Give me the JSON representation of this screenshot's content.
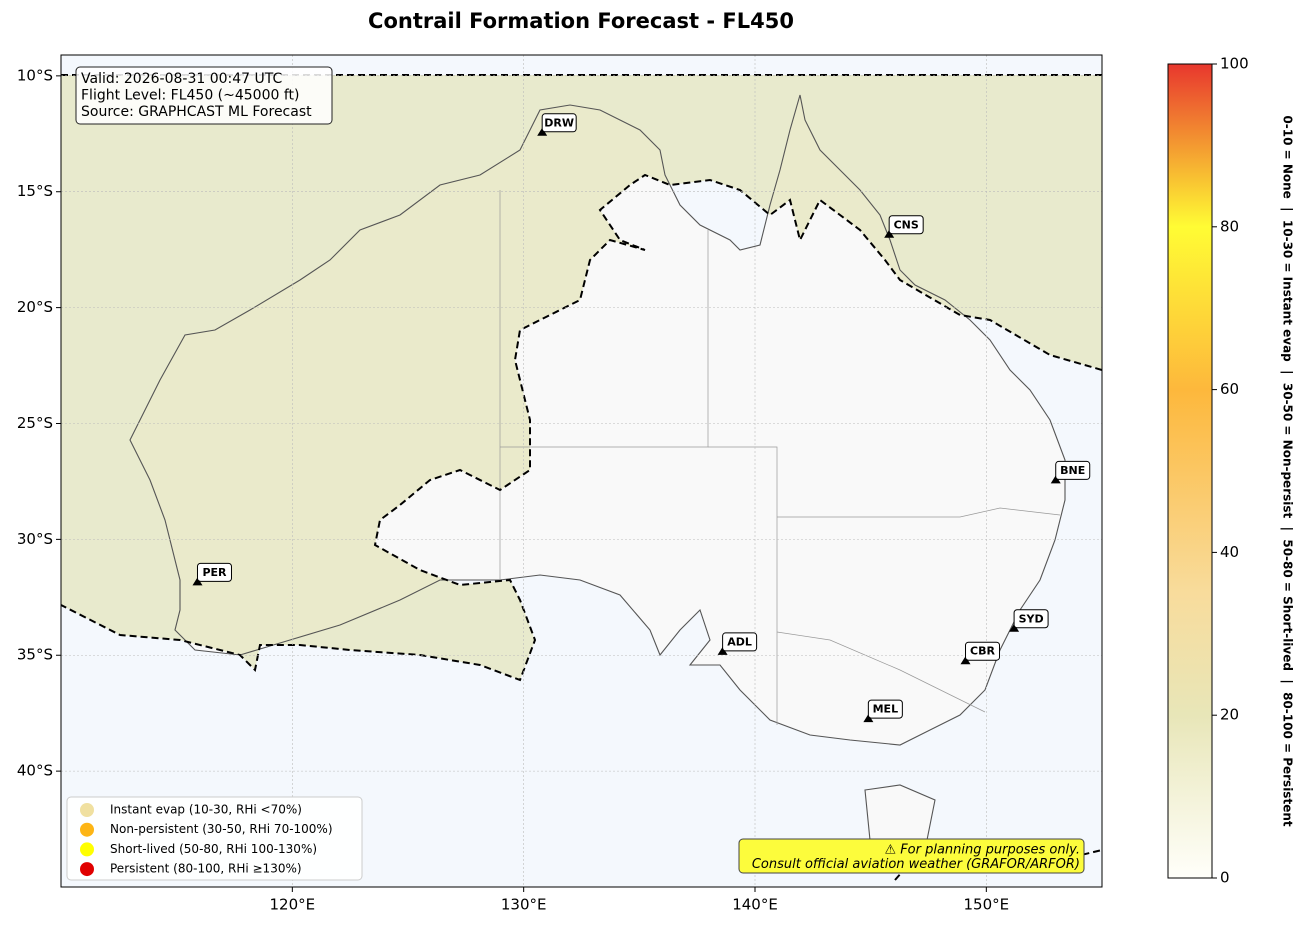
{
  "title": "Contrail Formation Forecast - FL450",
  "map": {
    "xlim": [
      110,
      155
    ],
    "ylim": [
      -45,
      -9.1
    ],
    "xticks": [
      {
        "value": 120,
        "label": "120°E"
      },
      {
        "value": 130,
        "label": "130°E"
      },
      {
        "value": 140,
        "label": "140°E"
      },
      {
        "value": 150,
        "label": "150°E"
      }
    ],
    "yticks": [
      {
        "value": -10,
        "label": "10°S"
      },
      {
        "value": -15,
        "label": "15°S"
      },
      {
        "value": -20,
        "label": "20°S"
      },
      {
        "value": -25,
        "label": "25°S"
      },
      {
        "value": -30,
        "label": "30°S"
      },
      {
        "value": -35,
        "label": "35°S"
      },
      {
        "value": -40,
        "label": "40°S"
      }
    ],
    "grid": true
  },
  "info_box": [
    "Valid: 2026-08-31 00:47 UTC",
    "Flight Level: FL450 (~45000 ft)",
    "Source: GRAPHCAST ML Forecast"
  ],
  "cities": [
    {
      "label": "DRW",
      "lon": 130.8,
      "lat": -12.5
    },
    {
      "label": "CNS",
      "lon": 145.8,
      "lat": -16.9
    },
    {
      "label": "BNE",
      "lon": 153.0,
      "lat": -27.5
    },
    {
      "label": "PER",
      "lon": 115.9,
      "lat": -31.9
    },
    {
      "label": "ADL",
      "lon": 138.6,
      "lat": -34.9
    },
    {
      "label": "SYD",
      "lon": 151.2,
      "lat": -33.9
    },
    {
      "label": "CBR",
      "lon": 149.1,
      "lat": -35.3
    },
    {
      "label": "MEL",
      "lon": 144.9,
      "lat": -37.8
    }
  ],
  "legend": [
    {
      "name": "Instant evap (10-30, RHi <70%)",
      "color": "#f0e0a0"
    },
    {
      "name": "Non-persistent (30-50, RHi 70-100%)",
      "color": "#fdb515"
    },
    {
      "name": "Short-lived (50-80, RHi 100-130%)",
      "color": "#ffff00"
    },
    {
      "name": "Persistent (80-100, RHi ≥130%)",
      "color": "#e00000"
    }
  ],
  "disclaimer": [
    "⚠ For planning purposes only.",
    "Consult official aviation weather (GRAFOR/ARFOR)"
  ],
  "colorbar": {
    "ylim": [
      0,
      100
    ],
    "yticks": [
      0,
      20,
      40,
      60,
      80,
      100
    ],
    "label": "0-10 = None  |  10-30 = Instant evap  |  30-50 = Non-persist  |  50-80 = Short-lived  |  80-100 = Persistent"
  }
}
